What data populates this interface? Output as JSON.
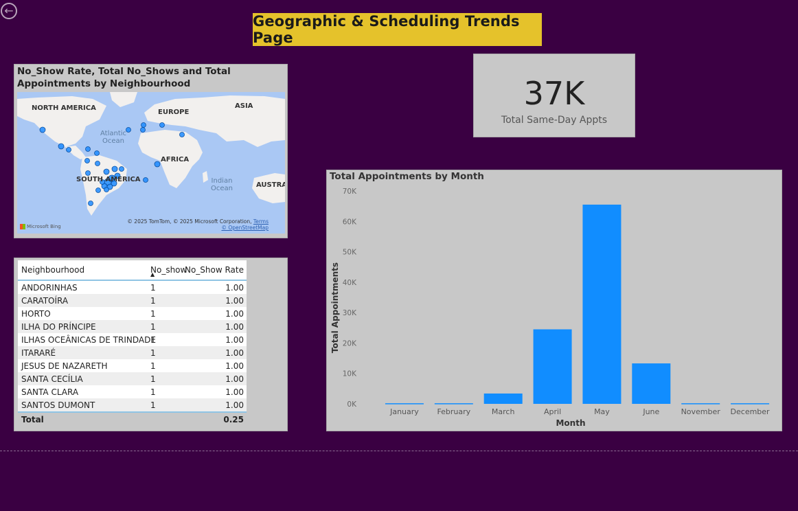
{
  "page": {
    "title": "Geographic & Scheduling Trends Page",
    "back_icon": "back-arrow-icon"
  },
  "map_visual": {
    "title": "No_Show Rate, Total No_Shows and Total Appointments by Neighbourhood",
    "labels": {
      "north_america": "NORTH AMERICA",
      "europe": "EUROPE",
      "asia": "ASIA",
      "africa": "AFRICA",
      "south_america": "SOUTH AMERICA",
      "australia": "AUSTRA",
      "atlantic": "Atlantic Ocean",
      "indian": "Indian Ocean"
    },
    "provider": "Microsoft Bing",
    "copyright": "© 2025 TomTom, © 2025 Microsoft Corporation,",
    "terms": "Terms",
    "osm": "© OpenStreetMap",
    "colors": {
      "water": "#aac8f4",
      "land": "#f2f0ee",
      "bubble": "#1f8bff",
      "bubble_stroke": "#0b4f9e"
    }
  },
  "kpi": {
    "value": "37K",
    "label": "Total Same-Day Appts"
  },
  "table": {
    "columns": [
      "Neighbourhood",
      "No_show",
      "No_Show Rate"
    ],
    "sorted_column": "No_show",
    "rows": [
      {
        "name": "ANDORINHAS",
        "no_show": "1",
        "rate": "1.00"
      },
      {
        "name": "CARATOÍRA",
        "no_show": "1",
        "rate": "1.00"
      },
      {
        "name": "HORTO",
        "no_show": "1",
        "rate": "1.00"
      },
      {
        "name": "ILHA DO PRÍNCIPE",
        "no_show": "1",
        "rate": "1.00"
      },
      {
        "name": "ILHAS OCEÂNICAS DE TRINDADE",
        "no_show": "1",
        "rate": "1.00"
      },
      {
        "name": "ITARARÉ",
        "no_show": "1",
        "rate": "1.00"
      },
      {
        "name": "JESUS DE NAZARETH",
        "no_show": "1",
        "rate": "1.00"
      },
      {
        "name": "SANTA CECÍLIA",
        "no_show": "1",
        "rate": "1.00"
      },
      {
        "name": "SANTA CLARA",
        "no_show": "1",
        "rate": "1.00"
      },
      {
        "name": "SANTOS DUMONT",
        "no_show": "1",
        "rate": "1.00"
      }
    ],
    "total": {
      "label": "Total",
      "rate": "0.25"
    }
  },
  "chart_data": {
    "type": "bar",
    "title": "Total Appointments by Month",
    "xlabel": "Month",
    "ylabel": "Total Appointments",
    "categories": [
      "January",
      "February",
      "March",
      "April",
      "May",
      "June",
      "November",
      "December"
    ],
    "values": [
      200,
      200,
      3400,
      24500,
      65500,
      13300,
      200,
      200
    ],
    "ylim": [
      0,
      70000
    ],
    "yticks": [
      0,
      10000,
      20000,
      30000,
      40000,
      50000,
      60000,
      70000
    ],
    "ytick_labels": [
      "0K",
      "10K",
      "20K",
      "30K",
      "40K",
      "50K",
      "60K",
      "70K"
    ],
    "grid": false,
    "color": "#118dff"
  }
}
